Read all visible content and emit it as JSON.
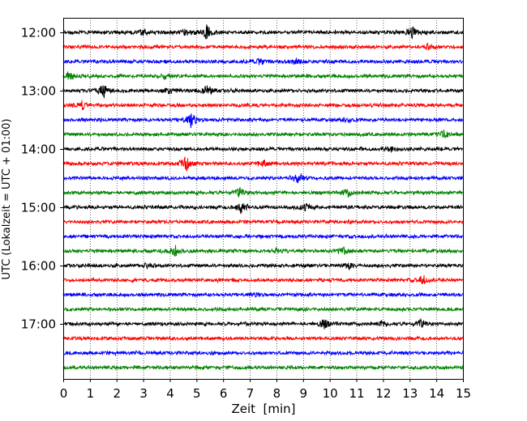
{
  "chart_data": {
    "type": "line",
    "title": "",
    "xlabel": "Zeit  [min]",
    "ylabel": "UTC (Lokalzeit = UTC + 01:00)",
    "xlim": [
      0,
      15
    ],
    "x_ticks": [
      "0",
      "1",
      "2",
      "3",
      "4",
      "5",
      "6",
      "7",
      "8",
      "9",
      "10",
      "11",
      "12",
      "13",
      "14",
      "15"
    ],
    "y_ticks": [
      "12:00",
      "13:00",
      "14:00",
      "15:00",
      "16:00",
      "17:00"
    ],
    "grid": "vertical dotted lines at each minute",
    "legend": "none",
    "trace_colors": [
      "#000000",
      "#ff0000",
      "#0000ff",
      "#008000"
    ],
    "traces": [
      {
        "start": "12:00",
        "color": "#000000",
        "events": [
          {
            "t": 5.4,
            "amp": 1.0
          },
          {
            "t": 13.1,
            "amp": 0.8
          },
          {
            "t": 4.6,
            "amp": 0.5
          },
          {
            "t": 3.0,
            "amp": 0.4
          }
        ]
      },
      {
        "start": "12:15",
        "color": "#ff0000",
        "events": [
          {
            "t": 13.7,
            "amp": 0.45
          }
        ]
      },
      {
        "start": "12:30",
        "color": "#0000ff",
        "events": [
          {
            "t": 7.4,
            "amp": 0.45
          },
          {
            "t": 8.7,
            "amp": 0.4
          }
        ]
      },
      {
        "start": "12:45",
        "color": "#008000",
        "events": [
          {
            "t": 0.2,
            "amp": 0.6
          },
          {
            "t": 3.8,
            "amp": 0.35
          }
        ]
      },
      {
        "start": "13:00",
        "color": "#000000",
        "events": [
          {
            "t": 1.5,
            "amp": 1.0
          },
          {
            "t": 5.4,
            "amp": 0.8
          },
          {
            "t": 4.0,
            "amp": 0.4
          }
        ]
      },
      {
        "start": "13:15",
        "color": "#ff0000",
        "events": [
          {
            "t": 0.7,
            "amp": 0.55
          }
        ]
      },
      {
        "start": "13:30",
        "color": "#0000ff",
        "events": [
          {
            "t": 4.8,
            "amp": 1.0
          },
          {
            "t": 10.7,
            "amp": 0.3
          }
        ]
      },
      {
        "start": "13:45",
        "color": "#008000",
        "events": [
          {
            "t": 14.3,
            "amp": 0.5
          }
        ]
      },
      {
        "start": "14:00",
        "color": "#000000",
        "events": [
          {
            "t": 12.3,
            "amp": 0.35
          }
        ]
      },
      {
        "start": "14:15",
        "color": "#ff0000",
        "events": [
          {
            "t": 4.6,
            "amp": 1.0
          },
          {
            "t": 7.5,
            "amp": 0.5
          }
        ]
      },
      {
        "start": "14:30",
        "color": "#0000ff",
        "events": [
          {
            "t": 8.8,
            "amp": 0.8
          }
        ]
      },
      {
        "start": "14:45",
        "color": "#008000",
        "events": [
          {
            "t": 6.6,
            "amp": 0.6
          },
          {
            "t": 10.7,
            "amp": 0.5
          }
        ]
      },
      {
        "start": "15:00",
        "color": "#000000",
        "events": [
          {
            "t": 6.7,
            "amp": 1.0
          },
          {
            "t": 9.1,
            "amp": 0.45
          }
        ]
      },
      {
        "start": "15:15",
        "color": "#ff0000",
        "events": []
      },
      {
        "start": "15:30",
        "color": "#0000ff",
        "events": []
      },
      {
        "start": "15:45",
        "color": "#008000",
        "events": [
          {
            "t": 4.2,
            "amp": 0.8
          },
          {
            "t": 10.5,
            "amp": 0.5
          },
          {
            "t": 8.0,
            "amp": 0.3
          }
        ]
      },
      {
        "start": "16:00",
        "color": "#000000",
        "events": [
          {
            "t": 3.2,
            "amp": 0.45
          },
          {
            "t": 10.7,
            "amp": 0.3
          }
        ]
      },
      {
        "start": "16:15",
        "color": "#ff0000",
        "events": [
          {
            "t": 13.5,
            "amp": 0.7
          }
        ]
      },
      {
        "start": "16:30",
        "color": "#0000ff",
        "events": [
          {
            "t": 7.3,
            "amp": 0.3
          }
        ]
      },
      {
        "start": "16:45",
        "color": "#008000",
        "events": []
      },
      {
        "start": "17:00",
        "color": "#000000",
        "events": [
          {
            "t": 9.8,
            "amp": 0.6
          },
          {
            "t": 13.4,
            "amp": 0.6
          },
          {
            "t": 12.0,
            "amp": 0.3
          }
        ]
      },
      {
        "start": "17:15",
        "color": "#ff0000",
        "events": []
      },
      {
        "start": "17:30",
        "color": "#0000ff",
        "events": []
      },
      {
        "start": "17:45",
        "color": "#008000",
        "events": []
      }
    ]
  }
}
